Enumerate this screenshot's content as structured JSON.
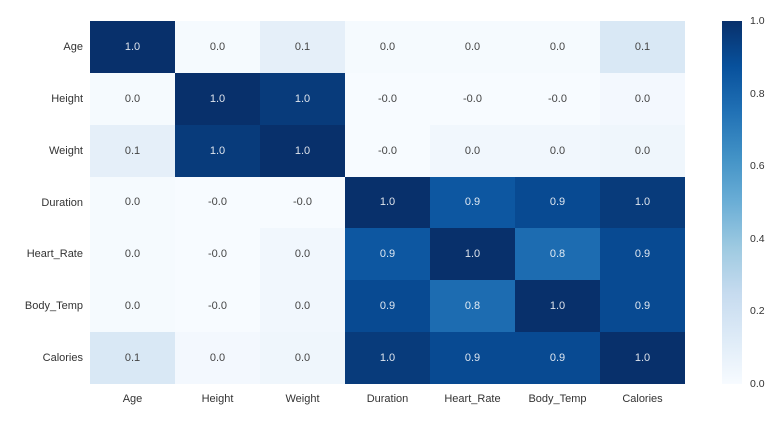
{
  "chart_data": {
    "type": "heatmap",
    "title": "",
    "xlabel": "",
    "ylabel": "",
    "colormap": "Blues",
    "grid": false,
    "rows": [
      "Age",
      "Height",
      "Weight",
      "Duration",
      "Heart_Rate",
      "Body_Temp",
      "Calories"
    ],
    "columns": [
      "Age",
      "Height",
      "Weight",
      "Duration",
      "Heart_Rate",
      "Body_Temp",
      "Calories"
    ],
    "cell_labels": [
      [
        "1.0",
        "0.0",
        "0.1",
        "0.0",
        "0.0",
        "0.0",
        "0.1"
      ],
      [
        "0.0",
        "1.0",
        "1.0",
        "-0.0",
        "-0.0",
        "-0.0",
        "0.0"
      ],
      [
        "0.1",
        "1.0",
        "1.0",
        "-0.0",
        "0.0",
        "0.0",
        "0.0"
      ],
      [
        "0.0",
        "-0.0",
        "-0.0",
        "1.0",
        "0.9",
        "0.9",
        "1.0"
      ],
      [
        "0.0",
        "-0.0",
        "0.0",
        "0.9",
        "1.0",
        "0.8",
        "0.9"
      ],
      [
        "0.0",
        "-0.0",
        "0.0",
        "0.9",
        "0.8",
        "1.0",
        "0.9"
      ],
      [
        "0.1",
        "0.0",
        "0.0",
        "1.0",
        "0.9",
        "0.9",
        "1.0"
      ]
    ],
    "values": [
      [
        1.0,
        0.01,
        0.09,
        0.01,
        0.01,
        0.01,
        0.15
      ],
      [
        0.01,
        1.0,
        0.96,
        0.0,
        0.0,
        0.0,
        0.02
      ],
      [
        0.09,
        0.96,
        1.0,
        0.0,
        0.03,
        0.03,
        0.04
      ],
      [
        0.01,
        0.0,
        0.0,
        1.0,
        0.85,
        0.9,
        0.96
      ],
      [
        0.01,
        0.0,
        0.03,
        0.85,
        1.0,
        0.77,
        0.9
      ],
      [
        0.01,
        0.0,
        0.03,
        0.9,
        0.77,
        1.0,
        0.9
      ],
      [
        0.15,
        0.02,
        0.04,
        0.96,
        0.9,
        0.9,
        1.0
      ]
    ],
    "value_range": [
      0.0,
      1.0
    ],
    "colorbar": {
      "tick_labels": [
        "1.0",
        "0.8",
        "0.6",
        "0.4",
        "0.2",
        "0.0"
      ],
      "min": 0.0,
      "max": 1.0,
      "position": "right"
    },
    "colors": {
      "background": "#ffffff",
      "cmap_low": "#f7fbff",
      "cmap_high": "#08306b",
      "annotation_dark": "#444444",
      "annotation_light": "rgba(255,255,255,0.87)",
      "tick_label": "#333333"
    }
  }
}
